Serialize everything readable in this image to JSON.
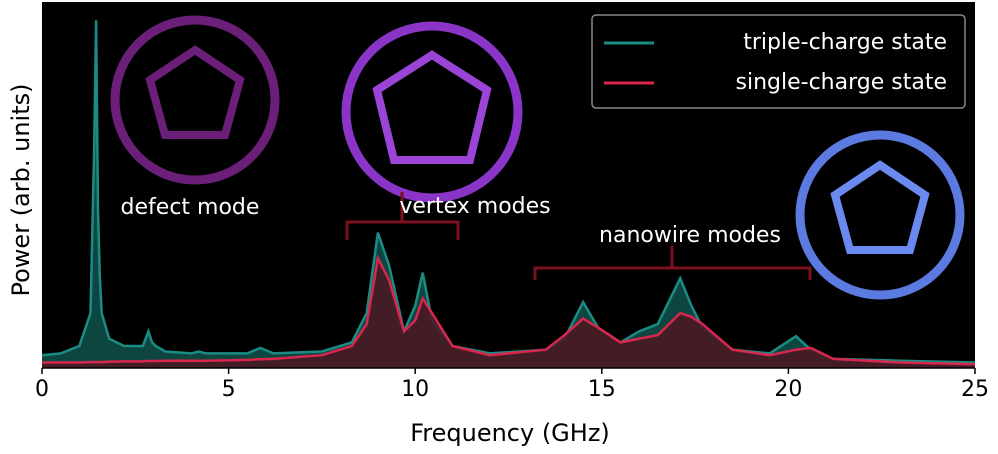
{
  "chart_data": {
    "type": "line",
    "xlabel": "Frequency (GHz)",
    "ylabel": "Power (arb. units)",
    "x": [
      0,
      0.5,
      1.0,
      1.3,
      1.4,
      1.45,
      1.5,
      1.55,
      1.6,
      1.8,
      2.2,
      2.7,
      2.85,
      2.95,
      3.05,
      3.3,
      4.0,
      4.2,
      4.4,
      5.5,
      5.85,
      6.2,
      7.5,
      8.3,
      8.7,
      9.0,
      9.3,
      9.7,
      10.0,
      10.2,
      10.45,
      11.0,
      12.0,
      13.5,
      14.0,
      14.5,
      14.9,
      15.5,
      16.0,
      16.5,
      17.1,
      17.4,
      17.7,
      18.5,
      19.5,
      20.2,
      20.6,
      21.2,
      23.0,
      25
    ],
    "series": [
      {
        "name": "triple-charge state",
        "color": "#1b8c84",
        "fill": "#0f524c",
        "values": [
          0.035,
          0.04,
          0.06,
          0.15,
          0.6,
          0.95,
          0.43,
          0.25,
          0.15,
          0.08,
          0.06,
          0.06,
          0.1,
          0.07,
          0.06,
          0.045,
          0.04,
          0.045,
          0.04,
          0.04,
          0.055,
          0.04,
          0.045,
          0.07,
          0.15,
          0.37,
          0.28,
          0.1,
          0.17,
          0.26,
          0.13,
          0.06,
          0.04,
          0.05,
          0.08,
          0.18,
          0.11,
          0.07,
          0.1,
          0.12,
          0.245,
          0.17,
          0.11,
          0.05,
          0.04,
          0.087,
          0.05,
          0.025,
          0.02,
          0.015
        ]
      },
      {
        "name": "single-charge state",
        "color": "#d8264c",
        "fill": "#4d1622",
        "values": [
          0.015,
          0.015,
          0.015,
          0.016,
          0.016,
          0.016,
          0.016,
          0.016,
          0.016,
          0.017,
          0.018,
          0.018,
          0.019,
          0.019,
          0.019,
          0.02,
          0.02,
          0.02,
          0.02,
          0.022,
          0.024,
          0.025,
          0.035,
          0.06,
          0.12,
          0.3,
          0.24,
          0.1,
          0.13,
          0.19,
          0.15,
          0.06,
          0.035,
          0.05,
          0.09,
          0.135,
          0.11,
          0.07,
          0.08,
          0.09,
          0.15,
          0.14,
          0.12,
          0.05,
          0.035,
          0.05,
          0.055,
          0.025,
          0.015,
          0.01
        ]
      }
    ],
    "annotations": [
      "defect mode",
      "vertex modes",
      "nanowire modes"
    ],
    "xlim": [
      0,
      25
    ],
    "xticks": [
      0,
      5,
      10,
      15,
      20,
      25
    ],
    "ylim": [
      0,
      1
    ],
    "legend": "upper right"
  }
}
